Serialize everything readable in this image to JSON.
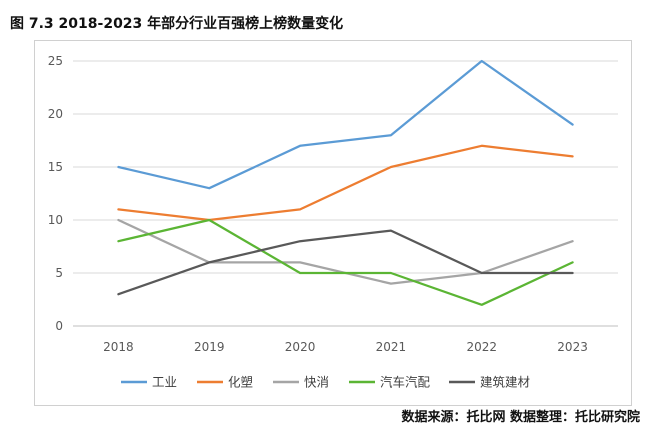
{
  "title": "图 7.3 2018-2023 年部分行业百强榜上榜数量变化",
  "source": "数据来源：托比网 数据整理：托比研究院",
  "chart_data": {
    "type": "line",
    "x": [
      "2018",
      "2019",
      "2020",
      "2021",
      "2022",
      "2023"
    ],
    "ylim": [
      0,
      25
    ],
    "yticks": [
      0,
      5,
      10,
      15,
      20,
      25
    ],
    "grid": true,
    "legend": "bottom",
    "series": [
      {
        "name": "工业",
        "color": "#5b9bd5",
        "values": [
          15,
          13,
          17,
          18,
          25,
          19
        ]
      },
      {
        "name": "化塑",
        "color": "#ed7d31",
        "values": [
          11,
          10,
          11,
          15,
          17,
          16
        ]
      },
      {
        "name": "快消",
        "color": "#a5a5a5",
        "values": [
          10,
          6,
          6,
          4,
          5,
          8
        ]
      },
      {
        "name": "汽车汽配",
        "color": "#5bb534",
        "values": [
          8,
          10,
          5,
          5,
          2,
          6
        ]
      },
      {
        "name": "建筑建材",
        "color": "#595959",
        "values": [
          3,
          6,
          8,
          9,
          5,
          5
        ]
      }
    ]
  }
}
